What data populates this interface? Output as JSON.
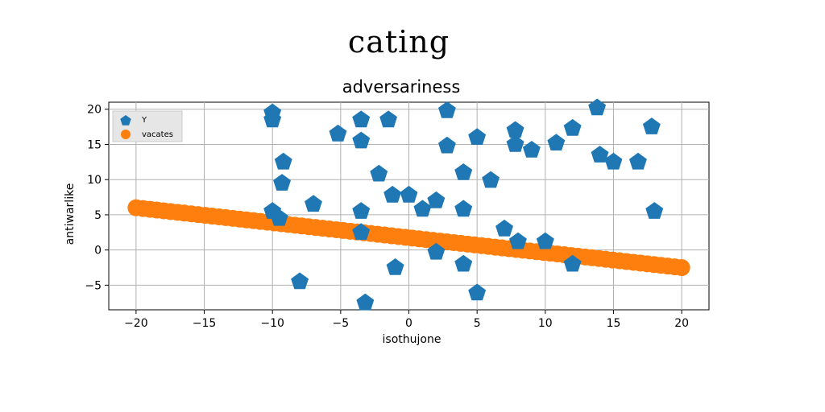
{
  "figure": {
    "suptitle": "cating"
  },
  "chart_data": {
    "type": "scatter",
    "title": "adversariness",
    "xlabel": "isothujone",
    "ylabel": "antiwarlike",
    "xlim": [
      -22,
      22
    ],
    "ylim": [
      -8.5,
      21
    ],
    "xticks": [
      -20,
      -15,
      -10,
      -5,
      0,
      5,
      10,
      15,
      20
    ],
    "yticks": [
      -5,
      0,
      5,
      10,
      15,
      20
    ],
    "grid": true,
    "legend_position": "top-left",
    "series": [
      {
        "name": "Y",
        "marker": "pentagon",
        "color": "#1f77b4",
        "points": [
          [
            -10,
            19.5
          ],
          [
            -10,
            18.5
          ],
          [
            -9.2,
            12.5
          ],
          [
            -9.3,
            9.5
          ],
          [
            -10,
            5.5
          ],
          [
            -9.5,
            4.5
          ],
          [
            -8,
            -4.5
          ],
          [
            -7,
            6.5
          ],
          [
            -5.2,
            16.5
          ],
          [
            -3.5,
            18.5
          ],
          [
            -3.5,
            15.5
          ],
          [
            -3.5,
            5.5
          ],
          [
            -3.5,
            2.5
          ],
          [
            -3.2,
            -7.5
          ],
          [
            -2.2,
            10.8
          ],
          [
            -1.5,
            18.5
          ],
          [
            -1.2,
            7.8
          ],
          [
            -1,
            -2.5
          ],
          [
            0,
            7.8
          ],
          [
            1,
            5.8
          ],
          [
            2,
            7
          ],
          [
            2,
            -0.3
          ],
          [
            2.8,
            19.8
          ],
          [
            2.8,
            14.8
          ],
          [
            4,
            11
          ],
          [
            4,
            5.8
          ],
          [
            4,
            -2
          ],
          [
            5,
            16
          ],
          [
            5,
            -6.1
          ],
          [
            6,
            9.9
          ],
          [
            7,
            3
          ],
          [
            7.8,
            17
          ],
          [
            7.8,
            15
          ],
          [
            8,
            1.2
          ],
          [
            9,
            14.2
          ],
          [
            10,
            1.2
          ],
          [
            10.8,
            15.2
          ],
          [
            12,
            17.3
          ],
          [
            12,
            -2
          ],
          [
            13.8,
            20.2
          ],
          [
            14,
            13.5
          ],
          [
            15,
            12.5
          ],
          [
            16.8,
            12.5
          ],
          [
            17.8,
            17.5
          ],
          [
            18,
            5.5
          ]
        ]
      },
      {
        "name": "vacates",
        "marker": "circle",
        "color": "#ff7f0e",
        "line": {
          "x_start": -20,
          "x_end": 20,
          "y_start": 6,
          "y_end": -2.5,
          "count": 80
        }
      }
    ]
  }
}
